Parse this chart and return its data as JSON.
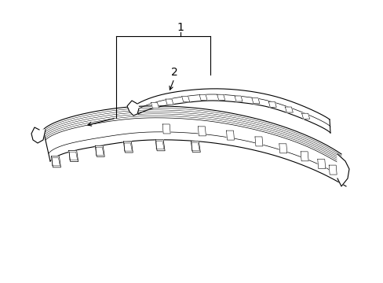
{
  "background_color": "#ffffff",
  "line_color": "#000000",
  "label1": "1",
  "label2": "2",
  "figsize": [
    4.89,
    3.6
  ],
  "dpi": 100,
  "lw_main": 0.8,
  "lw_detail": 0.5,
  "lw_thin": 0.35
}
